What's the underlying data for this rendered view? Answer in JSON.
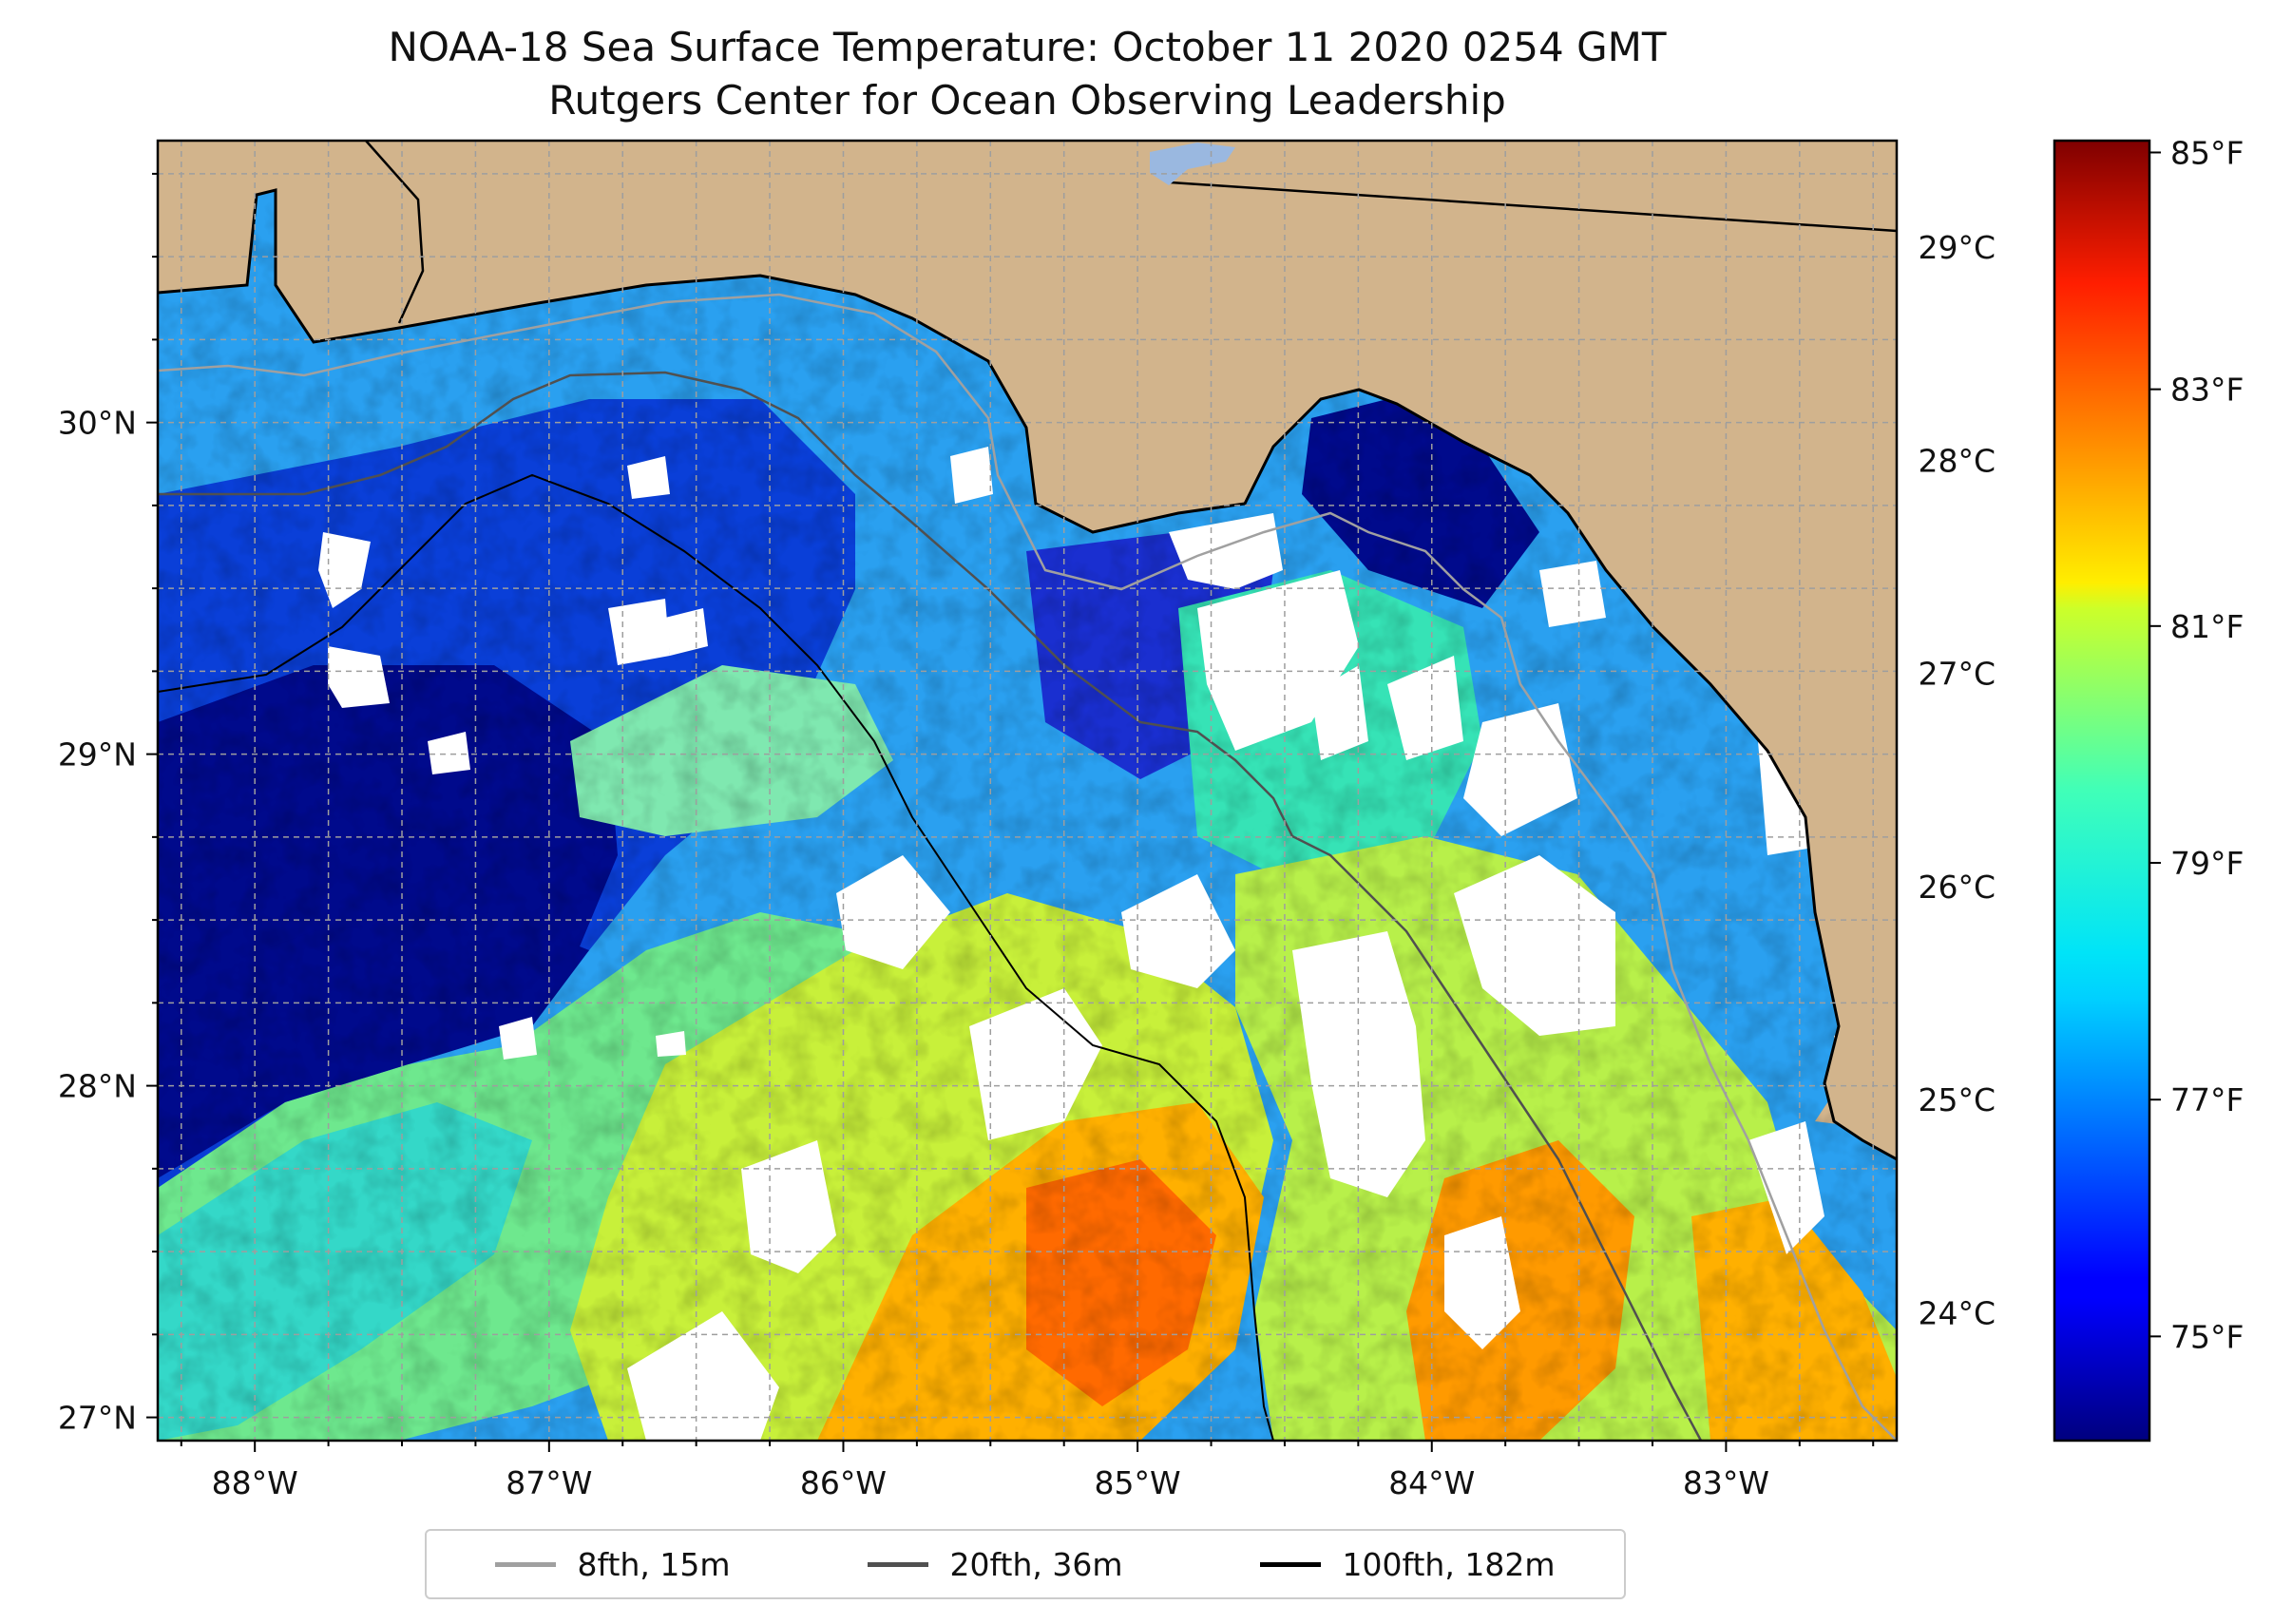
{
  "title": {
    "line1": "NOAA-18 Sea Surface Temperature: October 11 2020 0254 GMT",
    "line2": "Rutgers Center for Ocean Observing Leadership"
  },
  "map": {
    "land_color": "#D2B48C",
    "no_data_color": "#FFFFFF",
    "extent": {
      "lon": [
        -88.33,
        -82.42
      ],
      "lat": [
        26.93,
        30.85
      ]
    },
    "lat_labels": [
      {
        "label": "30°N",
        "lat": 30
      },
      {
        "label": "29°N",
        "lat": 29
      },
      {
        "label": "28°N",
        "lat": 28
      },
      {
        "label": "27°N",
        "lat": 27
      }
    ],
    "lon_labels": [
      {
        "label": "88°W",
        "lon": -88
      },
      {
        "label": "87°W",
        "lon": -87
      },
      {
        "label": "86°W",
        "lon": -86
      },
      {
        "label": "85°W",
        "lon": -85
      },
      {
        "label": "84°W",
        "lon": -84
      },
      {
        "label": "83°W",
        "lon": -83
      }
    ]
  },
  "colorbar": {
    "colormap": "jet",
    "range_c": [
      23.4,
      29.5
    ],
    "celsius_ticks": [
      {
        "label": "29°C",
        "value": 29
      },
      {
        "label": "28°C",
        "value": 28
      },
      {
        "label": "27°C",
        "value": 27
      },
      {
        "label": "26°C",
        "value": 26
      },
      {
        "label": "25°C",
        "value": 25
      },
      {
        "label": "24°C",
        "value": 24
      }
    ],
    "fahrenheit_ticks": [
      {
        "label": "85°F",
        "value": 85
      },
      {
        "label": "83°F",
        "value": 83
      },
      {
        "label": "81°F",
        "value": 81
      },
      {
        "label": "79°F",
        "value": 79
      },
      {
        "label": "77°F",
        "value": 77
      },
      {
        "label": "75°F",
        "value": 75
      }
    ]
  },
  "legend": {
    "items": [
      {
        "label": "8fth, 15m",
        "color": "#A0A0A0"
      },
      {
        "label": "20fth, 36m",
        "color": "#505050"
      },
      {
        "label": "100fth, 182m",
        "color": "#000000"
      }
    ]
  }
}
